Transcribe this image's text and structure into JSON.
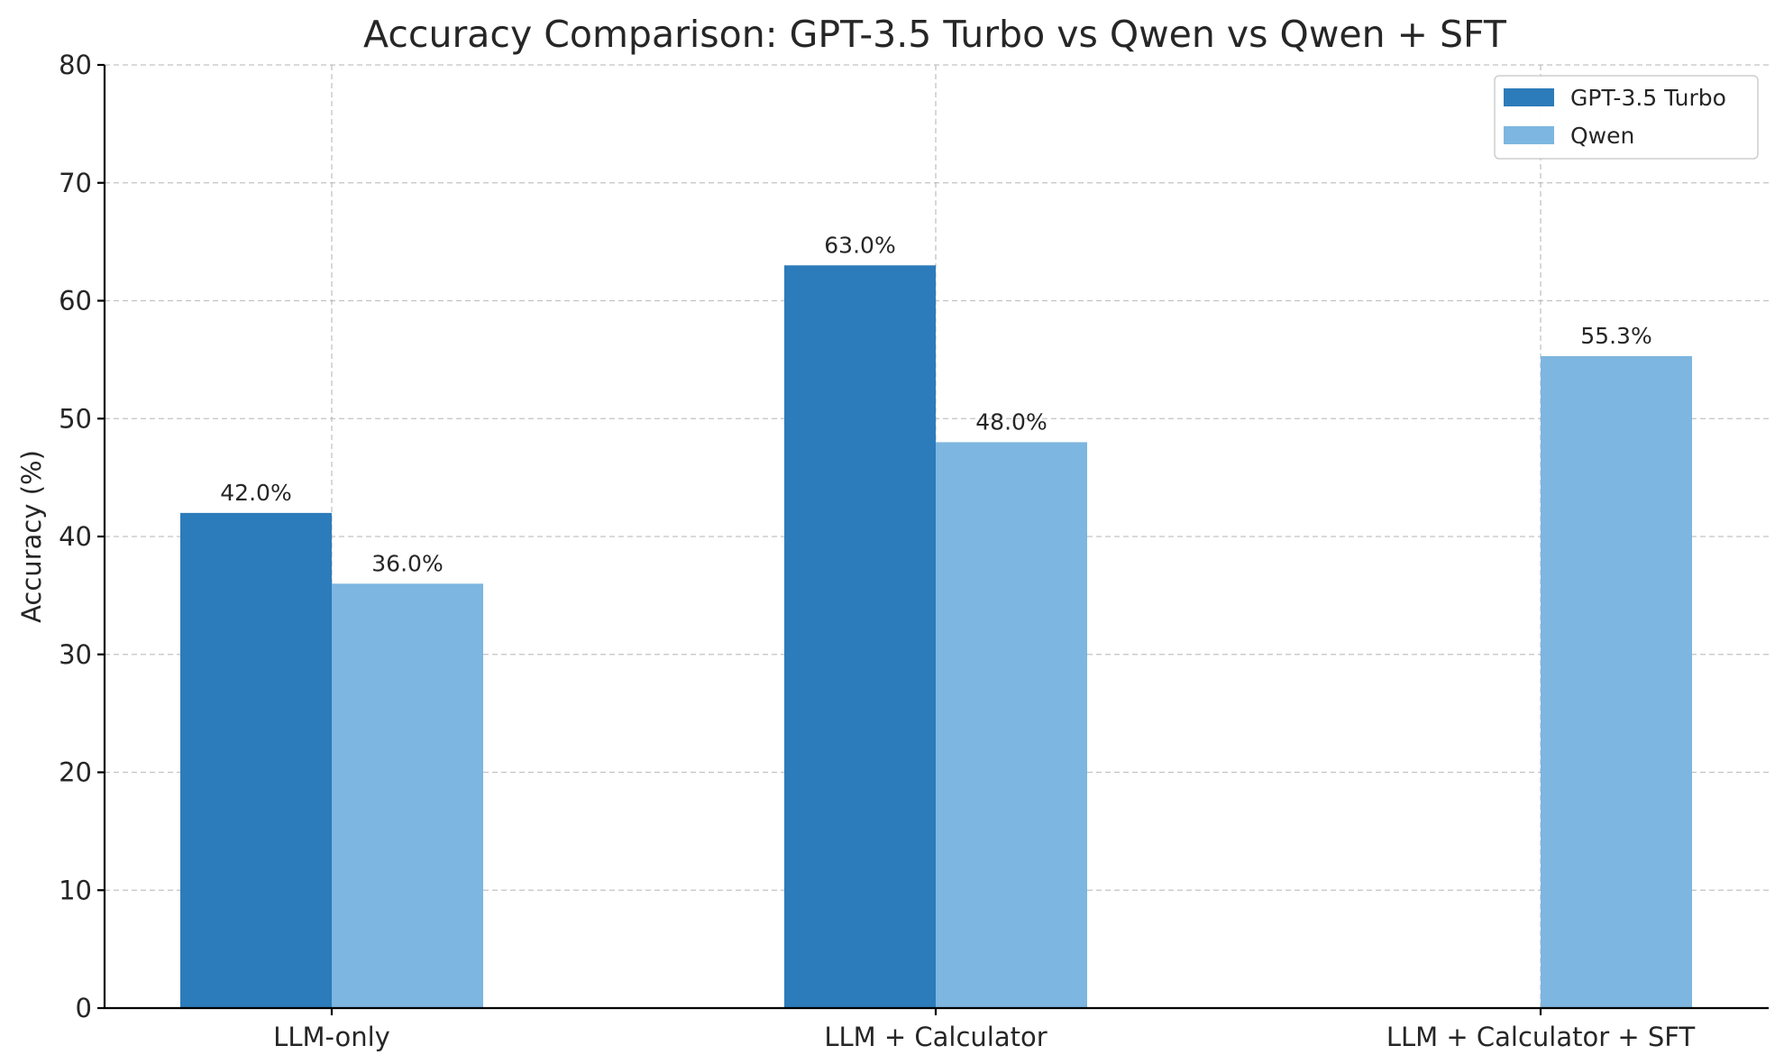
{
  "chart_data": {
    "type": "bar",
    "title": "Accuracy Comparison: GPT-3.5 Turbo vs Qwen vs Qwen + SFT",
    "xlabel": "",
    "ylabel": "Accuracy (%)",
    "categories": [
      "LLM-only",
      "LLM + Calculator",
      "LLM + Calculator + SFT"
    ],
    "series": [
      {
        "name": "GPT-3.5 Turbo",
        "color": "#2c7bba",
        "values": [
          42.0,
          63.0,
          null
        ]
      },
      {
        "name": "Qwen",
        "color": "#7db6e0",
        "values": [
          36.0,
          48.0,
          55.3
        ]
      }
    ],
    "data_labels": [
      [
        "42.0%",
        "63.0%",
        null
      ],
      [
        "36.0%",
        "48.0%",
        "55.3%"
      ]
    ],
    "ylim": [
      0,
      80
    ],
    "yticks": [
      0,
      10,
      20,
      30,
      40,
      50,
      60,
      70,
      80
    ],
    "grid": true,
    "legend_position": "top-right"
  }
}
